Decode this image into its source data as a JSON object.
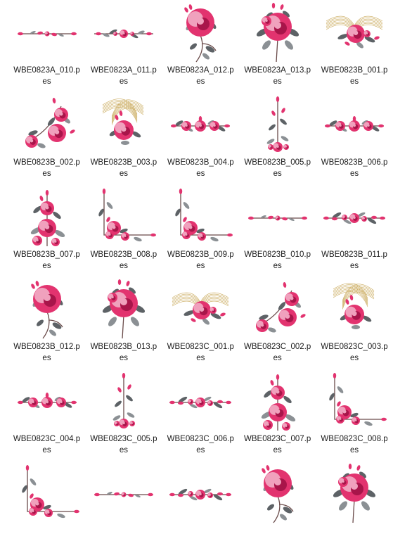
{
  "colors": {
    "petal": "#e2336f",
    "petal_light": "#f0a1bd",
    "petal_dark": "#a8154a",
    "leaf": "#5d6266",
    "leaf_light": "#8b9094",
    "stem": "#6a4b4a",
    "ribbon": "#c9a95a"
  },
  "files": [
    {
      "name": "WBE0823A_010.pes",
      "motif": "line-thin"
    },
    {
      "name": "WBE0823A_011.pes",
      "motif": "line-small"
    },
    {
      "name": "WBE0823A_012.pes",
      "motif": "rose-stem"
    },
    {
      "name": "WBE0823A_013.pes",
      "motif": "rose-bouquet"
    },
    {
      "name": "WBE0823B_001.pes",
      "motif": "ribbon-spray"
    },
    {
      "name": "WBE0823B_002.pes",
      "motif": "corner-cluster"
    },
    {
      "name": "WBE0823B_003.pes",
      "motif": "ribbon-rose"
    },
    {
      "name": "WBE0823B_004.pes",
      "motif": "line-triple"
    },
    {
      "name": "WBE0823B_005.pes",
      "motif": "vertical-spray"
    },
    {
      "name": "WBE0823B_006.pes",
      "motif": "line-triple"
    },
    {
      "name": "WBE0823B_007.pes",
      "motif": "vertical-cluster"
    },
    {
      "name": "WBE0823B_008.pes",
      "motif": "corner-lower"
    },
    {
      "name": "WBE0823B_009.pes",
      "motif": "corner-lower"
    },
    {
      "name": "WBE0823B_010.pes",
      "motif": "line-thin"
    },
    {
      "name": "WBE0823B_011.pes",
      "motif": "line-spray"
    },
    {
      "name": "WBE0823B_012.pes",
      "motif": "rose-stem"
    },
    {
      "name": "WBE0823B_013.pes",
      "motif": "rose-bouquet"
    },
    {
      "name": "WBE0823C_001.pes",
      "motif": "ribbon-spray"
    },
    {
      "name": "WBE0823C_002.pes",
      "motif": "corner-cluster"
    },
    {
      "name": "WBE0823C_003.pes",
      "motif": "ribbon-rose"
    },
    {
      "name": "WBE0823C_004.pes",
      "motif": "line-triple"
    },
    {
      "name": "WBE0823C_005.pes",
      "motif": "vertical-spray"
    },
    {
      "name": "WBE0823C_006.pes",
      "motif": "line-spray"
    },
    {
      "name": "WBE0823C_007.pes",
      "motif": "vertical-cluster"
    },
    {
      "name": "WBE0823C_008.pes",
      "motif": "corner-lower"
    },
    {
      "name": "",
      "motif": "corner-lower"
    },
    {
      "name": "",
      "motif": "line-thin"
    },
    {
      "name": "",
      "motif": "line-spray"
    },
    {
      "name": "",
      "motif": "rose-stem"
    },
    {
      "name": "",
      "motif": "rose-bouquet"
    }
  ]
}
